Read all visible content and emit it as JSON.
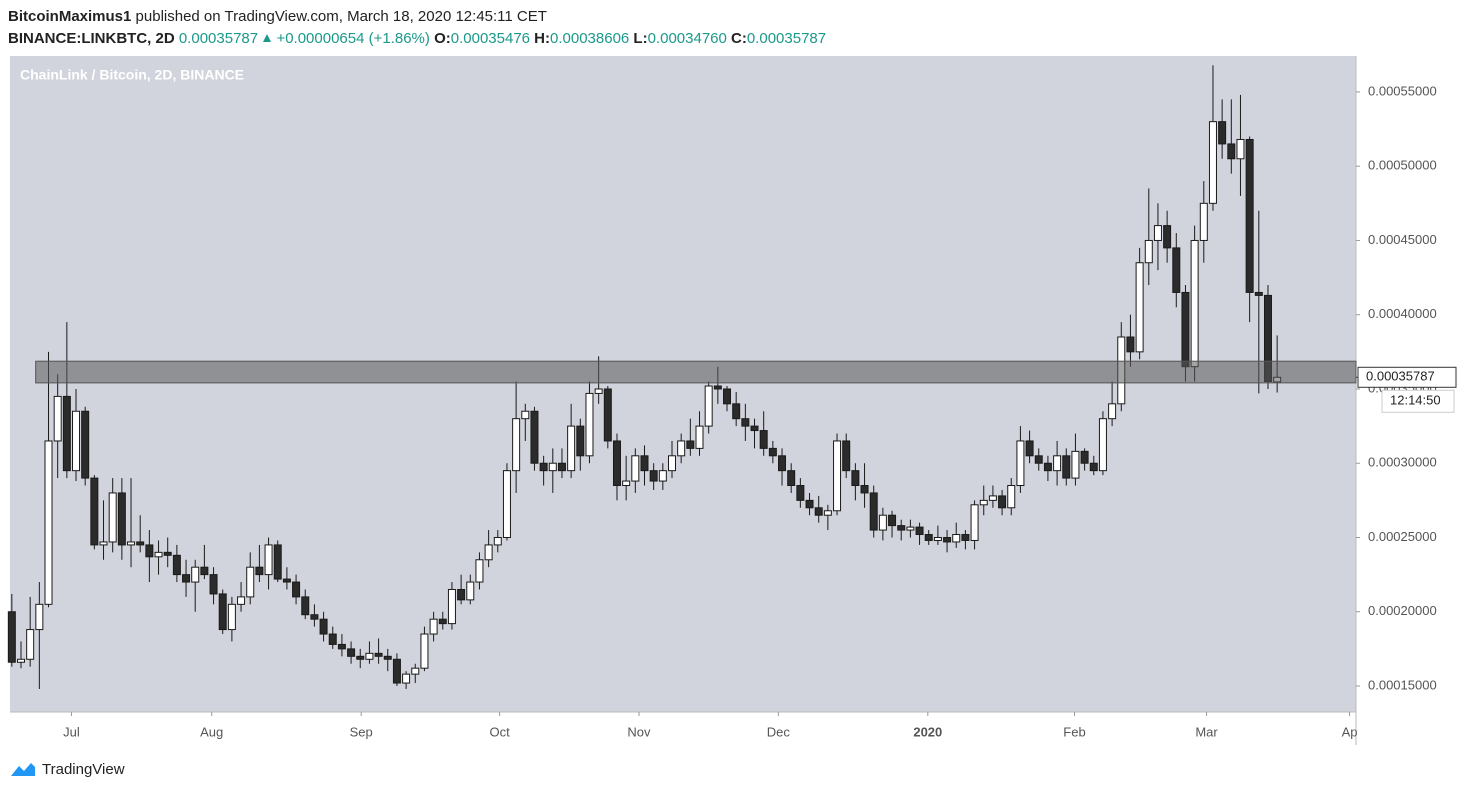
{
  "header": {
    "author": "BitcoinMaximus1",
    "published": "published on TradingView.com, March 18, 2020 12:45:11 CET",
    "symbol": "BINANCE:LINKBTC, 2D",
    "price": "0.00035787",
    "change": "+0.00000654 (+1.86%)",
    "ohlc": [
      {
        "label": "O:",
        "value": "0.00035476"
      },
      {
        "label": "H:",
        "value": "0.00038606"
      },
      {
        "label": "L:",
        "value": "0.00034760"
      },
      {
        "label": "C:",
        "value": "0.00035787"
      }
    ]
  },
  "footer": {
    "brand": "TradingView"
  },
  "chart_data": {
    "type": "candlestick",
    "title": "ChainLink / Bitcoin, 2D, BINANCE",
    "up_color": "#ffffff",
    "down_color": "#2b2b2b",
    "background": "#d1d4dc",
    "ylim": [
      0.0001325,
      0.0005742
    ],
    "yticks": [
      {
        "value": 0.00015,
        "label": "0.00015000"
      },
      {
        "value": 0.0002,
        "label": "0.00020000"
      },
      {
        "value": 0.00025,
        "label": "0.00025000"
      },
      {
        "value": 0.0003,
        "label": "0.00030000"
      },
      {
        "value": 0.00035,
        "label": "0.00035000"
      },
      {
        "value": 0.0004,
        "label": "0.00040000"
      },
      {
        "value": 0.00045,
        "label": "0.00045000"
      },
      {
        "value": 0.0005,
        "label": "0.00050000"
      },
      {
        "value": 0.00055,
        "label": "0.00055000"
      }
    ],
    "xlim": [
      -0.2,
      146.6
    ],
    "xticks": [
      {
        "value": 6.5,
        "label": "Jul"
      },
      {
        "value": 21.8,
        "label": "Aug"
      },
      {
        "value": 38.1,
        "label": "Sep"
      },
      {
        "value": 53.2,
        "label": "Oct"
      },
      {
        "value": 68.4,
        "label": "Nov"
      },
      {
        "value": 83.6,
        "label": "Dec"
      },
      {
        "value": 99.9,
        "label": "2020"
      },
      {
        "value": 115.9,
        "label": "Feb"
      },
      {
        "value": 130.3,
        "label": "Mar"
      },
      {
        "value": 145.9,
        "label": "Ap"
      }
    ],
    "zone": {
      "low": 0.0003541,
      "high": 0.0003687,
      "x_start": 2.6
    },
    "last_price": "0.00035787",
    "countdown": "12:14:50",
    "candles": [
      [
        0.0002,
        0.000212,
        0.000163,
        0.000166
      ],
      [
        0.000166,
        0.00018,
        0.000162,
        0.000168
      ],
      [
        0.000168,
        0.00021,
        0.000163,
        0.000188
      ],
      [
        0.000188,
        0.00022,
        0.000148,
        0.000205
      ],
      [
        0.000205,
        0.000375,
        0.000203,
        0.000315
      ],
      [
        0.000315,
        0.00036,
        0.00029,
        0.000345
      ],
      [
        0.000345,
        0.000395,
        0.00029,
        0.000295
      ],
      [
        0.000295,
        0.00035,
        0.000288,
        0.000335
      ],
      [
        0.000335,
        0.000338,
        0.000285,
        0.00029
      ],
      [
        0.00029,
        0.000292,
        0.000242,
        0.000245
      ],
      [
        0.000245,
        0.000275,
        0.000235,
        0.000247
      ],
      [
        0.000247,
        0.00029,
        0.00024,
        0.00028
      ],
      [
        0.00028,
        0.00029,
        0.000235,
        0.000245
      ],
      [
        0.000245,
        0.00029,
        0.00023,
        0.000247
      ],
      [
        0.000247,
        0.000265,
        0.00024,
        0.000245
      ],
      [
        0.000245,
        0.000255,
        0.00022,
        0.000237
      ],
      [
        0.000237,
        0.000248,
        0.000225,
        0.00024
      ],
      [
        0.00024,
        0.00025,
        0.00023,
        0.000238
      ],
      [
        0.000238,
        0.000245,
        0.00022,
        0.000225
      ],
      [
        0.000225,
        0.000235,
        0.00021,
        0.00022
      ],
      [
        0.00022,
        0.000235,
        0.0002,
        0.00023
      ],
      [
        0.00023,
        0.000245,
        0.000222,
        0.000225
      ],
      [
        0.000225,
        0.00023,
        0.000205,
        0.000212
      ],
      [
        0.000212,
        0.000215,
        0.000185,
        0.000188
      ],
      [
        0.000188,
        0.00021,
        0.00018,
        0.000205
      ],
      [
        0.000205,
        0.00022,
        0.0002,
        0.00021
      ],
      [
        0.00021,
        0.00024,
        0.000205,
        0.00023
      ],
      [
        0.00023,
        0.000245,
        0.00022,
        0.000225
      ],
      [
        0.000225,
        0.00025,
        0.000215,
        0.000245
      ],
      [
        0.000245,
        0.000248,
        0.00022,
        0.000222
      ],
      [
        0.000222,
        0.00023,
        0.000215,
        0.00022
      ],
      [
        0.00022,
        0.000225,
        0.000205,
        0.00021
      ],
      [
        0.00021,
        0.000215,
        0.000195,
        0.000198
      ],
      [
        0.000198,
        0.000205,
        0.00019,
        0.000195
      ],
      [
        0.000195,
        0.0002,
        0.00018,
        0.000185
      ],
      [
        0.000185,
        0.00019,
        0.000175,
        0.000178
      ],
      [
        0.000178,
        0.000185,
        0.00017,
        0.000175
      ],
      [
        0.000175,
        0.00018,
        0.000165,
        0.00017
      ],
      [
        0.00017,
        0.000175,
        0.000162,
        0.000168
      ],
      [
        0.000168,
        0.00018,
        0.000165,
        0.000172
      ],
      [
        0.000172,
        0.000182,
        0.000165,
        0.00017
      ],
      [
        0.00017,
        0.000175,
        0.00016,
        0.000168
      ],
      [
        0.000168,
        0.000172,
        0.00015,
        0.000152
      ],
      [
        0.000152,
        0.00016,
        0.000148,
        0.000158
      ],
      [
        0.000158,
        0.000165,
        0.000152,
        0.000162
      ],
      [
        0.000162,
        0.00019,
        0.00016,
        0.000185
      ],
      [
        0.000185,
        0.0002,
        0.00018,
        0.000195
      ],
      [
        0.000195,
        0.0002,
        0.000188,
        0.000192
      ],
      [
        0.000192,
        0.00022,
        0.000188,
        0.000215
      ],
      [
        0.000215,
        0.000225,
        0.000205,
        0.000208
      ],
      [
        0.000208,
        0.000225,
        0.000205,
        0.00022
      ],
      [
        0.00022,
        0.00024,
        0.000215,
        0.000235
      ],
      [
        0.000235,
        0.000255,
        0.00023,
        0.000245
      ],
      [
        0.000245,
        0.000255,
        0.00024,
        0.00025
      ],
      [
        0.00025,
        0.0003,
        0.000248,
        0.000295
      ],
      [
        0.000295,
        0.000355,
        0.00028,
        0.00033
      ],
      [
        0.00033,
        0.00034,
        0.000315,
        0.000335
      ],
      [
        0.000335,
        0.000338,
        0.000295,
        0.0003
      ],
      [
        0.0003,
        0.000305,
        0.000285,
        0.000295
      ],
      [
        0.000295,
        0.00031,
        0.00028,
        0.0003
      ],
      [
        0.0003,
        0.00031,
        0.00029,
        0.000295
      ],
      [
        0.000295,
        0.00034,
        0.00029,
        0.000325
      ],
      [
        0.000325,
        0.00033,
        0.000295,
        0.000305
      ],
      [
        0.000305,
        0.000355,
        0.0003,
        0.000347
      ],
      [
        0.000347,
        0.000372,
        0.00034,
        0.00035
      ],
      [
        0.00035,
        0.000352,
        0.00031,
        0.000315
      ],
      [
        0.000315,
        0.00032,
        0.000275,
        0.000285
      ],
      [
        0.000285,
        0.000305,
        0.000275,
        0.000288
      ],
      [
        0.000288,
        0.00031,
        0.00028,
        0.000305
      ],
      [
        0.000305,
        0.000312,
        0.000285,
        0.000295
      ],
      [
        0.000295,
        0.0003,
        0.000282,
        0.000288
      ],
      [
        0.000288,
        0.0003,
        0.000282,
        0.000295
      ],
      [
        0.000295,
        0.000315,
        0.00029,
        0.000305
      ],
      [
        0.000305,
        0.00032,
        0.0003,
        0.000315
      ],
      [
        0.000315,
        0.00033,
        0.000305,
        0.00031
      ],
      [
        0.00031,
        0.000335,
        0.000305,
        0.000325
      ],
      [
        0.000325,
        0.000355,
        0.00032,
        0.000352
      ],
      [
        0.000352,
        0.000365,
        0.00034,
        0.00035
      ],
      [
        0.00035,
        0.000352,
        0.000335,
        0.00034
      ],
      [
        0.00034,
        0.000348,
        0.000325,
        0.00033
      ],
      [
        0.00033,
        0.00034,
        0.000315,
        0.000325
      ],
      [
        0.000325,
        0.00033,
        0.00031,
        0.000322
      ],
      [
        0.000322,
        0.000335,
        0.000305,
        0.00031
      ],
      [
        0.00031,
        0.000315,
        0.0003,
        0.000305
      ],
      [
        0.000305,
        0.00031,
        0.000285,
        0.000295
      ],
      [
        0.000295,
        0.0003,
        0.00028,
        0.000285
      ],
      [
        0.000285,
        0.00029,
        0.00027,
        0.000275
      ],
      [
        0.000275,
        0.00028,
        0.000265,
        0.00027
      ],
      [
        0.00027,
        0.000278,
        0.00026,
        0.000265
      ],
      [
        0.000265,
        0.000272,
        0.000255,
        0.000268
      ],
      [
        0.000268,
        0.00032,
        0.000265,
        0.000315
      ],
      [
        0.000315,
        0.00032,
        0.00029,
        0.000295
      ],
      [
        0.000295,
        0.0003,
        0.000275,
        0.000285
      ],
      [
        0.000285,
        0.0003,
        0.00027,
        0.00028
      ],
      [
        0.00028,
        0.000285,
        0.00025,
        0.000255
      ],
      [
        0.000255,
        0.00027,
        0.000248,
        0.000265
      ],
      [
        0.000265,
        0.000268,
        0.00025,
        0.000258
      ],
      [
        0.000258,
        0.000262,
        0.000248,
        0.000255
      ],
      [
        0.000255,
        0.000262,
        0.00025,
        0.000257
      ],
      [
        0.000257,
        0.00026,
        0.000245,
        0.000252
      ],
      [
        0.000252,
        0.000255,
        0.000245,
        0.000248
      ],
      [
        0.000248,
        0.000258,
        0.000245,
        0.00025
      ],
      [
        0.00025,
        0.000255,
        0.00024,
        0.000247
      ],
      [
        0.000247,
        0.00026,
        0.000243,
        0.000252
      ],
      [
        0.000252,
        0.000255,
        0.000242,
        0.000248
      ],
      [
        0.000248,
        0.000275,
        0.000242,
        0.000272
      ],
      [
        0.000272,
        0.000285,
        0.000265,
        0.000275
      ],
      [
        0.000275,
        0.000285,
        0.00027,
        0.000278
      ],
      [
        0.000278,
        0.000282,
        0.000265,
        0.00027
      ],
      [
        0.00027,
        0.00029,
        0.000265,
        0.000285
      ],
      [
        0.000285,
        0.000325,
        0.00028,
        0.000315
      ],
      [
        0.000315,
        0.000322,
        0.0003,
        0.000305
      ],
      [
        0.000305,
        0.00031,
        0.000295,
        0.0003
      ],
      [
        0.0003,
        0.000305,
        0.000288,
        0.000295
      ],
      [
        0.000295,
        0.000315,
        0.000285,
        0.000305
      ],
      [
        0.000305,
        0.00031,
        0.000285,
        0.00029
      ],
      [
        0.00029,
        0.00032,
        0.000285,
        0.000308
      ],
      [
        0.000308,
        0.00031,
        0.000295,
        0.0003
      ],
      [
        0.0003,
        0.000305,
        0.000292,
        0.000295
      ],
      [
        0.000295,
        0.000335,
        0.000292,
        0.00033
      ],
      [
        0.00033,
        0.000355,
        0.000325,
        0.00034
      ],
      [
        0.00034,
        0.000395,
        0.000335,
        0.000385
      ],
      [
        0.000385,
        0.0004,
        0.000365,
        0.000375
      ],
      [
        0.000375,
        0.000445,
        0.00037,
        0.000435
      ],
      [
        0.000435,
        0.000485,
        0.00042,
        0.00045
      ],
      [
        0.00045,
        0.000475,
        0.00043,
        0.00046
      ],
      [
        0.00046,
        0.00047,
        0.000435,
        0.000445
      ],
      [
        0.000445,
        0.000455,
        0.000405,
        0.000415
      ],
      [
        0.000415,
        0.00042,
        0.000355,
        0.000365
      ],
      [
        0.000365,
        0.00046,
        0.000355,
        0.00045
      ],
      [
        0.00045,
        0.00049,
        0.000435,
        0.000475
      ],
      [
        0.000475,
        0.000568,
        0.00047,
        0.00053
      ],
      [
        0.00053,
        0.000545,
        0.000505,
        0.000515
      ],
      [
        0.000515,
        0.000545,
        0.000495,
        0.000505
      ],
      [
        0.000505,
        0.000548,
        0.00048,
        0.000518
      ],
      [
        0.000518,
        0.00052,
        0.000395,
        0.000415
      ],
      [
        0.000415,
        0.00047,
        0.000347,
        0.000413
      ],
      [
        0.000413,
        0.00042,
        0.00035,
        0.000355
      ],
      [
        0.00035476,
        0.00038606,
        0.0003476,
        0.00035787
      ]
    ]
  }
}
